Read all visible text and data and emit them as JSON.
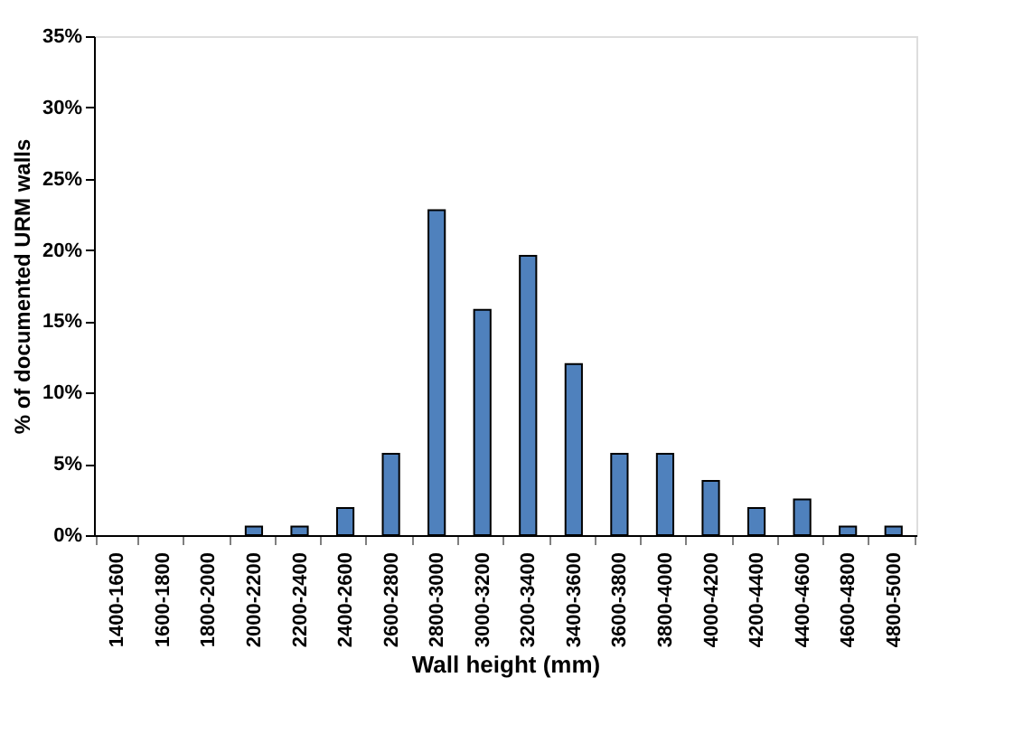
{
  "chart_data": {
    "type": "bar",
    "xlabel": "Wall height (mm)",
    "ylabel": "% of documented URM walls",
    "categories": [
      "1400-1600",
      "1600-1800",
      "1800-2000",
      "2000-2200",
      "2200-2400",
      "2400-2600",
      "2600-2800",
      "2800-3000",
      "3000-3200",
      "3200-3400",
      "3400-3600",
      "3600-3800",
      "3800-4000",
      "4000-4200",
      "4200-4400",
      "4400-4600",
      "4600-4800",
      "4800-5000"
    ],
    "values": [
      0,
      0,
      0,
      0.6,
      0.6,
      1.9,
      5.7,
      22.8,
      15.8,
      19.6,
      12.0,
      5.7,
      5.7,
      3.8,
      1.9,
      2.5,
      0.6,
      0.6
    ],
    "color": "#4f81bd",
    "ylim": [
      0,
      35
    ],
    "yticks": [
      {
        "value": 0,
        "label": "0%"
      },
      {
        "value": 5,
        "label": "5%"
      },
      {
        "value": 10,
        "label": "10%"
      },
      {
        "value": 15,
        "label": "15%"
      },
      {
        "value": 20,
        "label": "20%"
      },
      {
        "value": 25,
        "label": "25%"
      },
      {
        "value": 30,
        "label": "30%"
      },
      {
        "value": 35,
        "label": "35%"
      }
    ],
    "grid": false
  }
}
